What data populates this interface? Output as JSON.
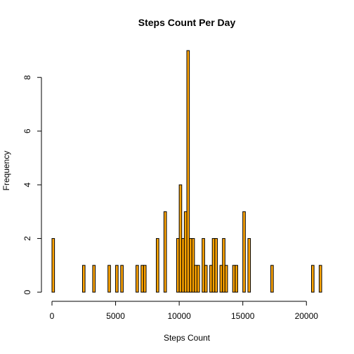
{
  "chart_data": {
    "type": "bar",
    "title": "Steps Count Per Day",
    "xlabel": "Steps Count",
    "ylabel": "Frequency",
    "bar_color": "#FFA500",
    "bar_border_color": "#000000",
    "bin_width": 200,
    "xlim": [
      0,
      21200
    ],
    "ylim": [
      0,
      9
    ],
    "x_ticks": [
      0,
      5000,
      10000,
      15000,
      20000
    ],
    "y_ticks": [
      0,
      2,
      4,
      6,
      8
    ],
    "bins": [
      {
        "start": 0,
        "count": 2
      },
      {
        "start": 2400,
        "count": 1
      },
      {
        "start": 3200,
        "count": 1
      },
      {
        "start": 4400,
        "count": 1
      },
      {
        "start": 5000,
        "count": 1
      },
      {
        "start": 5400,
        "count": 1
      },
      {
        "start": 6600,
        "count": 1
      },
      {
        "start": 7000,
        "count": 1
      },
      {
        "start": 7200,
        "count": 1
      },
      {
        "start": 8200,
        "count": 2
      },
      {
        "start": 8800,
        "count": 3
      },
      {
        "start": 9800,
        "count": 2
      },
      {
        "start": 10000,
        "count": 4
      },
      {
        "start": 10200,
        "count": 2
      },
      {
        "start": 10400,
        "count": 3
      },
      {
        "start": 10600,
        "count": 9
      },
      {
        "start": 10800,
        "count": 2
      },
      {
        "start": 11000,
        "count": 2
      },
      {
        "start": 11200,
        "count": 1
      },
      {
        "start": 11400,
        "count": 1
      },
      {
        "start": 11800,
        "count": 2
      },
      {
        "start": 12000,
        "count": 1
      },
      {
        "start": 12400,
        "count": 1
      },
      {
        "start": 12600,
        "count": 2
      },
      {
        "start": 12800,
        "count": 2
      },
      {
        "start": 13200,
        "count": 1
      },
      {
        "start": 13400,
        "count": 2
      },
      {
        "start": 13600,
        "count": 1
      },
      {
        "start": 14200,
        "count": 1
      },
      {
        "start": 14400,
        "count": 1
      },
      {
        "start": 15000,
        "count": 3
      },
      {
        "start": 15400,
        "count": 2
      },
      {
        "start": 17200,
        "count": 1
      },
      {
        "start": 20400,
        "count": 1
      },
      {
        "start": 21000,
        "count": 1
      }
    ]
  }
}
